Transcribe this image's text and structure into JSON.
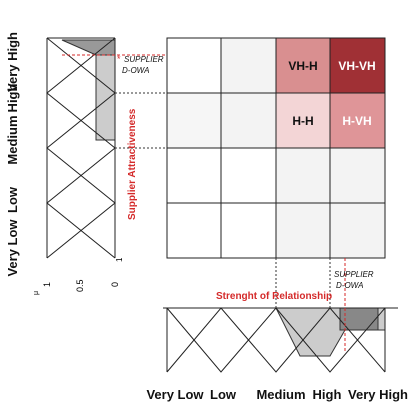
{
  "left_labels": [
    "Very High",
    "High",
    "Medium",
    "Low",
    "Very Low"
  ],
  "mu_ticks": [
    "1",
    "0.5",
    "0"
  ],
  "mu_symbol": "μ",
  "left_bottom_tick": "1",
  "left_owa": {
    "star": "*",
    "line1": "SUPPLIER",
    "line2": "D-OWA"
  },
  "left_axis_title": "Supplier Attractiveness",
  "cells": [
    {
      "label": "VH-H"
    },
    {
      "label": "VH-VH"
    },
    {
      "label": "H-H"
    },
    {
      "label": "H-VH"
    }
  ],
  "bottom_axis_title": "Strenght of Relationship",
  "bottom_owa": {
    "line1": "SUPPLIER",
    "line2": "D-OWA"
  },
  "bottom_labels": [
    "Very Low",
    "Low",
    "Medium",
    "High",
    "Very High"
  ]
}
